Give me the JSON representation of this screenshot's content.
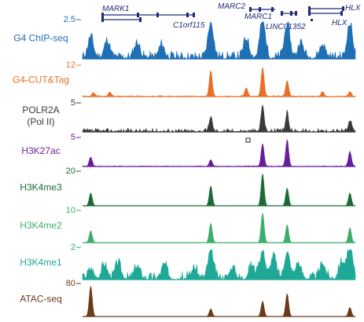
{
  "chart_data": {
    "type": "area",
    "genes": [
      {
        "name": "MARK1",
        "color": "#1f2a78"
      },
      {
        "name": "C1orf115",
        "color": "#1f2a78"
      },
      {
        "name": "MARC2",
        "color": "#1f2a78"
      },
      {
        "name": "MARC1",
        "color": "#1f2a78"
      },
      {
        "name": "LINC01352",
        "color": "#1f2a78"
      },
      {
        "name": "HLX",
        "color": "#1f2a78"
      },
      {
        "name": "HLX",
        "color": "#1f2a78"
      }
    ],
    "tracks": [
      {
        "name": "G4 ChIP-seq",
        "scale": "2.5",
        "color": "#1f6fb5",
        "peaks": [
          [
            0.03,
            0.55
          ],
          [
            0.09,
            0.45
          ],
          [
            0.2,
            0.4
          ],
          [
            0.29,
            0.35
          ],
          [
            0.47,
            0.95
          ],
          [
            0.6,
            0.5
          ],
          [
            0.66,
            1.0
          ],
          [
            0.75,
            0.9
          ],
          [
            0.8,
            0.4
          ],
          [
            0.88,
            0.35
          ],
          [
            0.98,
            0.9
          ]
        ],
        "noise": 0.22,
        "seed": 11
      },
      {
        "name": "G4-CUT&Tag",
        "scale": "12",
        "color": "#e8702a",
        "peaks": [
          [
            0.04,
            0.12
          ],
          [
            0.1,
            0.15
          ],
          [
            0.47,
            0.9
          ],
          [
            0.6,
            0.3
          ],
          [
            0.66,
            1.0
          ],
          [
            0.75,
            0.55
          ],
          [
            0.88,
            0.15
          ],
          [
            0.98,
            0.15
          ]
        ],
        "noise": 0.04,
        "seed": 23
      },
      {
        "name": "POLR2A",
        "name2": "(Pol II)",
        "scale": "5",
        "color": "#3a3a3a",
        "peaks": [
          [
            0.47,
            0.55
          ],
          [
            0.66,
            1.0
          ],
          [
            0.75,
            0.7
          ],
          [
            0.98,
            0.4
          ]
        ],
        "noise": 0.14,
        "seed": 37
      },
      {
        "name": "H3K27ac",
        "scale": "5",
        "color": "#6a1f9a",
        "peaks": [
          [
            0.03,
            0.35
          ],
          [
            0.47,
            0.25
          ],
          [
            0.66,
            0.85
          ],
          [
            0.75,
            1.0
          ],
          [
            0.98,
            0.55
          ]
        ],
        "noise": 0.03,
        "seed": 41
      },
      {
        "name": "H3K4me3",
        "scale": "20",
        "color": "#1a6b32",
        "peaks": [
          [
            0.03,
            0.4
          ],
          [
            0.47,
            0.62
          ],
          [
            0.66,
            1.0
          ],
          [
            0.75,
            0.55
          ],
          [
            0.98,
            0.4
          ]
        ],
        "noise": 0.0,
        "seed": 53
      },
      {
        "name": "H3K4me2",
        "scale": "10",
        "color": "#3fae6a",
        "peaks": [
          [
            0.03,
            0.4
          ],
          [
            0.47,
            0.65
          ],
          [
            0.66,
            1.0
          ],
          [
            0.75,
            0.6
          ],
          [
            0.98,
            0.5
          ]
        ],
        "noise": 0.01,
        "seed": 59
      },
      {
        "name": "H3K4me1",
        "scale": "2",
        "color": "#1ea896",
        "peaks": [
          [
            0.03,
            0.3
          ],
          [
            0.08,
            0.45
          ],
          [
            0.13,
            0.5
          ],
          [
            0.2,
            0.4
          ],
          [
            0.3,
            0.45
          ],
          [
            0.41,
            0.35
          ],
          [
            0.47,
            0.9
          ],
          [
            0.55,
            0.35
          ],
          [
            0.62,
            0.45
          ],
          [
            0.66,
            0.9
          ],
          [
            0.7,
            0.75
          ],
          [
            0.75,
            0.85
          ],
          [
            0.79,
            0.5
          ],
          [
            0.88,
            0.5
          ],
          [
            0.95,
            0.55
          ],
          [
            0.98,
            1.0
          ]
        ],
        "noise": 0.28,
        "seed": 67
      },
      {
        "name": "ATAC-seq",
        "scale": "80",
        "color": "#6a3a1a",
        "peaks": [
          [
            0.03,
            1.0
          ],
          [
            0.47,
            0.25
          ],
          [
            0.66,
            0.5
          ],
          [
            0.75,
            0.75
          ],
          [
            0.98,
            0.3
          ]
        ],
        "noise": 0.0,
        "seed": 71
      }
    ]
  }
}
